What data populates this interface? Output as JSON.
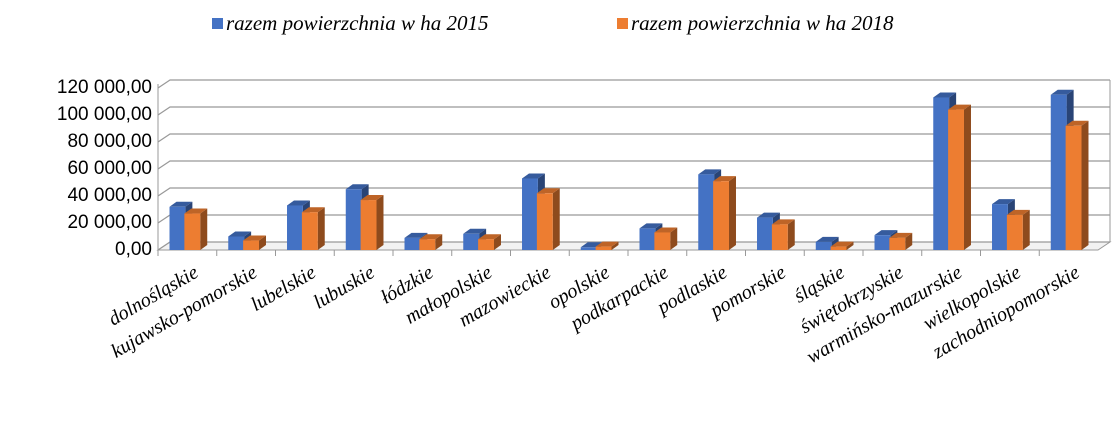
{
  "chart_data": {
    "type": "bar",
    "categories": [
      "dolnośląskie",
      "kujawsko-pomorskie",
      "lubelskie",
      "lubuskie",
      "łódzkie",
      "małopolskie",
      "mazowieckie",
      "opolskie",
      "podkarpackie",
      "podlaskie",
      "pomorskie",
      "śląskie",
      "świętokrzyskie",
      "warmińsko-mazurskie",
      "wielkopolskie",
      "zachodniopomorskie"
    ],
    "series": [
      {
        "name": "razem powierzchnia  w ha 2015",
        "color": "#4472c4",
        "values": [
          32000,
          10000,
          33000,
          45000,
          9000,
          12000,
          53000,
          2000,
          16000,
          56000,
          24000,
          6000,
          11000,
          113000,
          34000,
          115000
        ]
      },
      {
        "name": "razem powierzchnia  w ha 2018",
        "color": "#ed7d31",
        "values": [
          27000,
          7000,
          28000,
          37000,
          8000,
          8000,
          42000,
          2500,
          13000,
          51000,
          19000,
          2500,
          9000,
          104000,
          26000,
          92000
        ]
      }
    ],
    "ylim": [
      0,
      120000
    ],
    "yticks": [
      {
        "value": 0,
        "label": "0,00"
      },
      {
        "value": 20000,
        "label": "20 000,00"
      },
      {
        "value": 40000,
        "label": "40 000,00"
      },
      {
        "value": 60000,
        "label": "60 000,00"
      },
      {
        "value": 80000,
        "label": "80 000,00"
      },
      {
        "value": 100000,
        "label": "100 000,00"
      },
      {
        "value": 120000,
        "label": "120 000,00"
      }
    ],
    "grid": true,
    "legend": "top"
  }
}
